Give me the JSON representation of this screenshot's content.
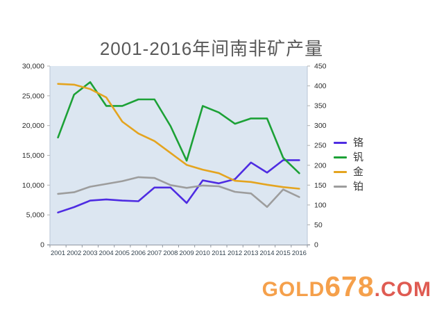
{
  "title": "2001-2016年间南非矿产量",
  "watermark": {
    "part1": "GOLD",
    "part2": "678",
    "part3": ".COM",
    "color_main": "#f5a04b",
    "color_com": "#df5b52"
  },
  "chart_data": {
    "type": "line",
    "title": "2001-2016年间南非矿产量",
    "x_labels": [
      "2001",
      "2002",
      "2003",
      "2004",
      "2005",
      "2006",
      "2007",
      "2008",
      "2009",
      "2010",
      "2011",
      "2012",
      "2013",
      "2014",
      "2015",
      "2016"
    ],
    "left_axis": {
      "min": 0,
      "max": 30000,
      "ticks": [
        "0",
        "5,000",
        "10,000",
        "15,000",
        "20,000",
        "25,000",
        "30,000"
      ]
    },
    "right_axis": {
      "min": 0,
      "max": 450,
      "ticks": [
        "0",
        "50",
        "100",
        "150",
        "200",
        "250",
        "300",
        "350",
        "400",
        "450"
      ]
    },
    "grid": false,
    "plot_bg": "#dce6f1",
    "legend_position": "right",
    "series": [
      {
        "name": "铬",
        "axis": "left",
        "color": "#4e2ce2",
        "values": [
          5400,
          6300,
          7400,
          7600,
          7400,
          7300,
          9600,
          9600,
          7000,
          10800,
          10300,
          11000,
          13800,
          12100,
          14200,
          14200
        ]
      },
      {
        "name": "钒",
        "axis": "left",
        "color": "#1ca136",
        "values": [
          18000,
          25200,
          27300,
          23300,
          23300,
          24400,
          24400,
          19900,
          14100,
          23300,
          22200,
          20300,
          21200,
          21200,
          14600,
          12000
        ]
      },
      {
        "name": "金",
        "axis": "right",
        "color": "#e4a41f",
        "values": [
          405,
          403,
          392,
          371,
          310,
          280,
          261,
          231,
          201,
          189,
          180,
          161,
          158,
          151,
          145,
          141
        ]
      },
      {
        "name": "铂",
        "axis": "right",
        "color": "#9d9d9d",
        "values": [
          128,
          132,
          146,
          153,
          160,
          170,
          168,
          150,
          143,
          149,
          147,
          133,
          129,
          95,
          139,
          120
        ]
      }
    ]
  }
}
